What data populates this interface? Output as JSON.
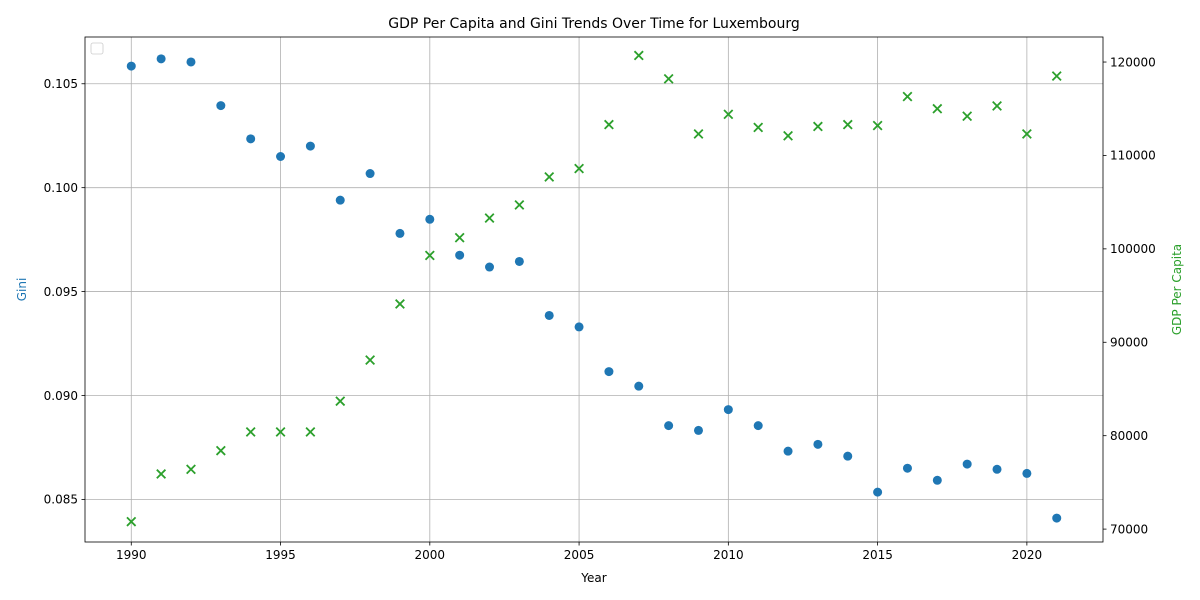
{
  "chart_data": {
    "type": "scatter",
    "title": "GDP Per Capita and Gini Trends Over Time for Luxembourg",
    "xlabel": "Year",
    "ylabel_left": "Gini",
    "ylabel_right": "GDP Per Capita",
    "xlim": [
      1988.45,
      1992.55
    ],
    "x_range": [
      1988.45,
      2022.55
    ],
    "ylim_left": [
      0.08295,
      0.10725
    ],
    "ylim_right": [
      68620,
      122680
    ],
    "x_ticks": [
      1990,
      1995,
      2000,
      2005,
      2010,
      2015,
      2020
    ],
    "x_tick_labels": [
      "1990",
      "1995",
      "2000",
      "2005",
      "2010",
      "2015",
      "2020"
    ],
    "y_left_ticks": [
      0.085,
      0.09,
      0.095,
      0.1,
      0.105
    ],
    "y_left_tick_labels": [
      "0.085",
      "0.090",
      "0.095",
      "0.100",
      "0.105"
    ],
    "y_right_ticks": [
      70000,
      80000,
      90000,
      100000,
      110000,
      120000
    ],
    "y_right_tick_labels": [
      "70000",
      "80000",
      "90000",
      "100000",
      "110000",
      "120000"
    ],
    "grid": true,
    "legend": "upper-left-empty",
    "x": [
      1990,
      1991,
      1992,
      1993,
      1994,
      1995,
      1996,
      1997,
      1998,
      1999,
      2000,
      2001,
      2002,
      2003,
      2004,
      2005,
      2006,
      2007,
      2008,
      2009,
      2010,
      2011,
      2012,
      2013,
      2014,
      2015,
      2016,
      2017,
      2018,
      2019,
      2020,
      2021
    ],
    "series": [
      {
        "axis": "left",
        "marker": "circle",
        "color": "#1f77b4",
        "values": [
          0.10585,
          0.1062,
          0.10605,
          0.10395,
          0.10235,
          0.1015,
          0.102,
          0.0994,
          0.10068,
          0.0978,
          0.09848,
          0.09675,
          0.09618,
          0.09645,
          0.09385,
          0.0933,
          0.09115,
          0.09045,
          0.08855,
          0.08832,
          0.08932,
          0.08855,
          0.08732,
          0.08765,
          0.08708,
          0.08535,
          0.0865,
          0.08592,
          0.0867,
          0.08645,
          0.08625,
          0.0841
        ]
      },
      {
        "axis": "right",
        "marker": "x",
        "color": "#2ca02c",
        "values": [
          70800,
          75900,
          76400,
          78400,
          80400,
          80400,
          80400,
          83700,
          88100,
          94100,
          99300,
          101200,
          103300,
          104700,
          107700,
          108600,
          113300,
          120700,
          118200,
          112300,
          114400,
          113000,
          112100,
          113100,
          113300,
          113200,
          116300,
          115000,
          114200,
          115300,
          112300,
          118500
        ]
      }
    ]
  }
}
